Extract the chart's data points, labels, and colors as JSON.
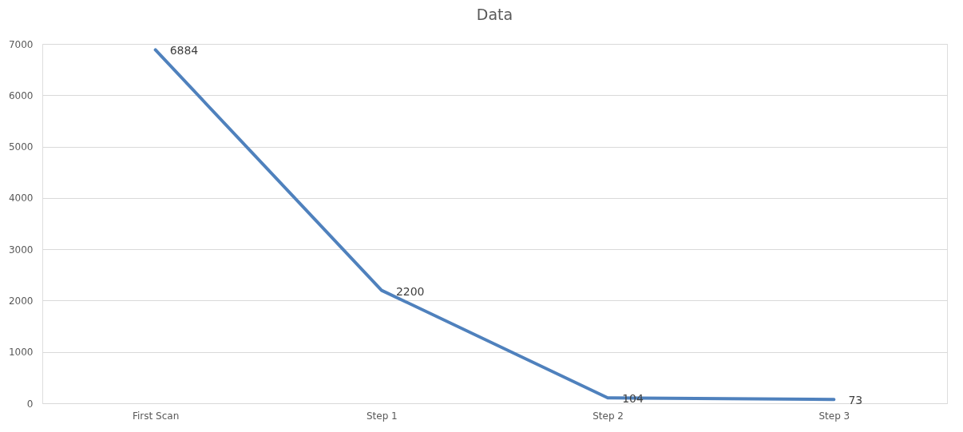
{
  "chart_data": {
    "type": "line",
    "title": "Data",
    "categories": [
      "First Scan",
      "Step 1",
      "Step 2",
      "Step 3"
    ],
    "series": [
      {
        "color": "#4f81bd",
        "values": [
          6884,
          2200,
          104,
          73
        ]
      }
    ],
    "ylim": [
      0,
      7000
    ],
    "yticks": [
      0,
      1000,
      2000,
      3000,
      4000,
      5000,
      6000,
      7000
    ],
    "grid": "y",
    "data_labels": true,
    "marker": "none",
    "line_style": "solid"
  }
}
